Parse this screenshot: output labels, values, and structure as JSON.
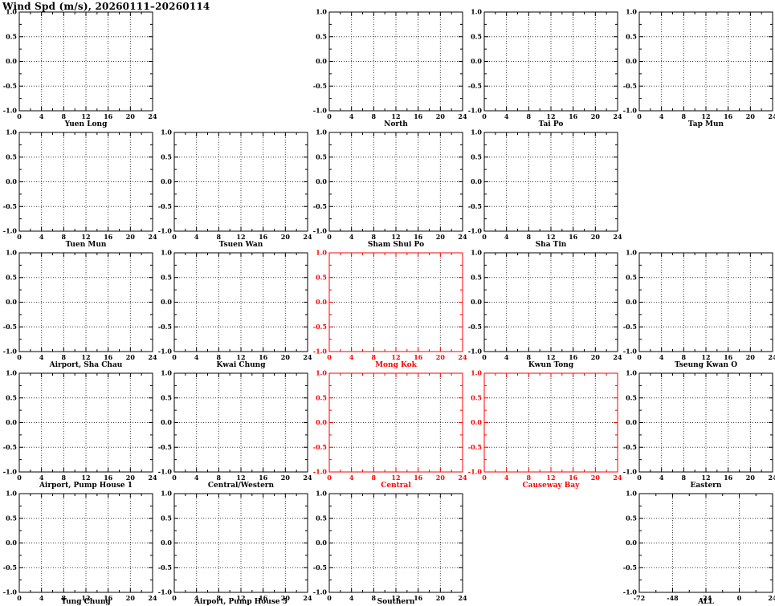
{
  "title": "Wind Spd (m/s), 20260111–20260114",
  "colors": {
    "axis": "#000000",
    "highlight": "#ff0000",
    "grid": "#404040",
    "background": "#ffffff"
  },
  "chart_data": {
    "type": "line",
    "title": "Wind Spd (m/s), 20260111–20260114",
    "note": "Small-multiples grid of per-station wind speed panels; every panel shows empty axes with no plotted series (no data).",
    "grid": "dotted",
    "ylim": [
      -1.0,
      1.0
    ],
    "yticks": [
      -1.0,
      -0.5,
      0.0,
      0.5,
      1.0
    ],
    "ytick_labels": [
      "-1.0",
      "-0.5",
      "0.0",
      "0.5",
      "1.0"
    ],
    "panels": [
      {
        "name": "Yuen Long",
        "row": 0,
        "col": 0,
        "highlighted": false,
        "xlim": [
          0,
          24
        ],
        "xticks": [
          0,
          4,
          8,
          12,
          16,
          20,
          24
        ],
        "xtick_labels": [
          "0",
          "4",
          "8",
          "12",
          "16",
          "20",
          "24"
        ],
        "series": []
      },
      {
        "name": "North",
        "row": 0,
        "col": 2,
        "highlighted": false,
        "xlim": [
          0,
          24
        ],
        "xticks": [
          0,
          4,
          8,
          12,
          16,
          20,
          24
        ],
        "xtick_labels": [
          "0",
          "4",
          "8",
          "12",
          "16",
          "20",
          "24"
        ],
        "series": []
      },
      {
        "name": "Tai Po",
        "row": 0,
        "col": 3,
        "highlighted": false,
        "xlim": [
          0,
          24
        ],
        "xticks": [
          0,
          4,
          8,
          12,
          16,
          20,
          24
        ],
        "xtick_labels": [
          "0",
          "4",
          "8",
          "12",
          "16",
          "20",
          "24"
        ],
        "series": []
      },
      {
        "name": "Tap Mun",
        "row": 0,
        "col": 4,
        "highlighted": false,
        "xlim": [
          0,
          24
        ],
        "xticks": [
          0,
          4,
          8,
          12,
          16,
          20,
          24
        ],
        "xtick_labels": [
          "0",
          "4",
          "8",
          "12",
          "16",
          "20",
          "24"
        ],
        "series": []
      },
      {
        "name": "Tuen Mun",
        "row": 1,
        "col": 0,
        "highlighted": false,
        "xlim": [
          0,
          24
        ],
        "xticks": [
          0,
          4,
          8,
          12,
          16,
          20,
          24
        ],
        "xtick_labels": [
          "0",
          "4",
          "8",
          "12",
          "16",
          "20",
          "24"
        ],
        "series": []
      },
      {
        "name": "Tsuen Wan",
        "row": 1,
        "col": 1,
        "highlighted": false,
        "xlim": [
          0,
          24
        ],
        "xticks": [
          0,
          4,
          8,
          12,
          16,
          20,
          24
        ],
        "xtick_labels": [
          "0",
          "4",
          "8",
          "12",
          "16",
          "20",
          "24"
        ],
        "series": []
      },
      {
        "name": "Sham Shui Po",
        "row": 1,
        "col": 2,
        "highlighted": false,
        "xlim": [
          0,
          24
        ],
        "xticks": [
          0,
          4,
          8,
          12,
          16,
          20,
          24
        ],
        "xtick_labels": [
          "0",
          "4",
          "8",
          "12",
          "16",
          "20",
          "24"
        ],
        "series": []
      },
      {
        "name": "Sha Tin",
        "row": 1,
        "col": 3,
        "highlighted": false,
        "xlim": [
          0,
          24
        ],
        "xticks": [
          0,
          4,
          8,
          12,
          16,
          20,
          24
        ],
        "xtick_labels": [
          "0",
          "4",
          "8",
          "12",
          "16",
          "20",
          "24"
        ],
        "series": []
      },
      {
        "name": "Airport, Sha Chau",
        "row": 2,
        "col": 0,
        "highlighted": false,
        "xlim": [
          0,
          24
        ],
        "xticks": [
          0,
          4,
          8,
          12,
          16,
          20,
          24
        ],
        "xtick_labels": [
          "0",
          "4",
          "8",
          "12",
          "16",
          "20",
          "24"
        ],
        "series": []
      },
      {
        "name": "Kwai Chung",
        "row": 2,
        "col": 1,
        "highlighted": false,
        "xlim": [
          0,
          24
        ],
        "xticks": [
          0,
          4,
          8,
          12,
          16,
          20,
          24
        ],
        "xtick_labels": [
          "0",
          "4",
          "8",
          "12",
          "16",
          "20",
          "24"
        ],
        "series": []
      },
      {
        "name": "Mong Kok",
        "row": 2,
        "col": 2,
        "highlighted": true,
        "xlim": [
          0,
          24
        ],
        "xticks": [
          0,
          4,
          8,
          12,
          16,
          20,
          24
        ],
        "xtick_labels": [
          "0",
          "4",
          "8",
          "12",
          "16",
          "20",
          "24"
        ],
        "series": []
      },
      {
        "name": "Kwun Tong",
        "row": 2,
        "col": 3,
        "highlighted": false,
        "xlim": [
          0,
          24
        ],
        "xticks": [
          0,
          4,
          8,
          12,
          16,
          20,
          24
        ],
        "xtick_labels": [
          "0",
          "4",
          "8",
          "12",
          "16",
          "20",
          "24"
        ],
        "series": []
      },
      {
        "name": "Tseung Kwan O",
        "row": 2,
        "col": 4,
        "highlighted": false,
        "xlim": [
          0,
          24
        ],
        "xticks": [
          0,
          4,
          8,
          12,
          16,
          20,
          24
        ],
        "xtick_labels": [
          "0",
          "4",
          "8",
          "12",
          "16",
          "20",
          "24"
        ],
        "series": []
      },
      {
        "name": "Airport, Pump House 1",
        "row": 3,
        "col": 0,
        "highlighted": false,
        "xlim": [
          0,
          24
        ],
        "xticks": [
          0,
          4,
          8,
          12,
          16,
          20,
          24
        ],
        "xtick_labels": [
          "0",
          "4",
          "8",
          "12",
          "16",
          "20",
          "24"
        ],
        "series": []
      },
      {
        "name": "Central/Western",
        "row": 3,
        "col": 1,
        "highlighted": false,
        "xlim": [
          0,
          24
        ],
        "xticks": [
          0,
          4,
          8,
          12,
          16,
          20,
          24
        ],
        "xtick_labels": [
          "0",
          "4",
          "8",
          "12",
          "16",
          "20",
          "24"
        ],
        "series": []
      },
      {
        "name": "Central",
        "row": 3,
        "col": 2,
        "highlighted": true,
        "xlim": [
          0,
          24
        ],
        "xticks": [
          0,
          4,
          8,
          12,
          16,
          20,
          24
        ],
        "xtick_labels": [
          "0",
          "4",
          "8",
          "12",
          "16",
          "20",
          "24"
        ],
        "series": []
      },
      {
        "name": "Causeway Bay",
        "row": 3,
        "col": 3,
        "highlighted": true,
        "xlim": [
          0,
          24
        ],
        "xticks": [
          0,
          4,
          8,
          12,
          16,
          20,
          24
        ],
        "xtick_labels": [
          "0",
          "4",
          "8",
          "12",
          "16",
          "20",
          "24"
        ],
        "series": []
      },
      {
        "name": "Eastern",
        "row": 3,
        "col": 4,
        "highlighted": false,
        "xlim": [
          0,
          24
        ],
        "xticks": [
          0,
          4,
          8,
          12,
          16,
          20,
          24
        ],
        "xtick_labels": [
          "0",
          "4",
          "8",
          "12",
          "16",
          "20",
          "24"
        ],
        "series": []
      },
      {
        "name": "Tung Chung",
        "row": 4,
        "col": 0,
        "highlighted": false,
        "xlim": [
          0,
          24
        ],
        "xticks": [
          0,
          4,
          8,
          12,
          16,
          20,
          24
        ],
        "xtick_labels": [
          "0",
          "4",
          "8",
          "12",
          "16",
          "20",
          "24"
        ],
        "series": []
      },
      {
        "name": "Airport, Pump House 5",
        "row": 4,
        "col": 1,
        "highlighted": false,
        "xlim": [
          0,
          24
        ],
        "xticks": [
          0,
          4,
          8,
          12,
          16,
          20,
          24
        ],
        "xtick_labels": [
          "0",
          "4",
          "8",
          "12",
          "16",
          "20",
          "24"
        ],
        "series": []
      },
      {
        "name": "Southern",
        "row": 4,
        "col": 2,
        "highlighted": false,
        "xlim": [
          0,
          24
        ],
        "xticks": [
          0,
          4,
          8,
          12,
          16,
          20,
          24
        ],
        "xtick_labels": [
          "0",
          "4",
          "8",
          "12",
          "16",
          "20",
          "24"
        ],
        "series": []
      },
      {
        "name": "ALL",
        "row": 4,
        "col": 4,
        "highlighted": false,
        "xlim": [
          -72,
          24
        ],
        "xticks": [
          -72,
          -48,
          -24,
          0,
          24
        ],
        "xtick_labels": [
          "-72",
          "-48",
          "-24",
          "0",
          "24"
        ],
        "series": []
      }
    ]
  }
}
